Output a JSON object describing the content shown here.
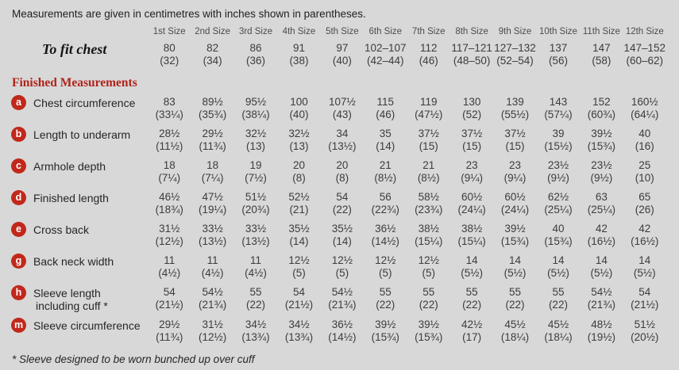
{
  "note": "Measurements are given in centimetres with inches shown in parentheses.",
  "footnote": "* Sleeve designed to be worn bunched up over cuff",
  "colors": {
    "background": "#d8d8d8",
    "badge_red": "#c1281b",
    "heading_red": "#b0241a",
    "text": "#2b2b2b"
  },
  "table": {
    "size_headers": [
      "1st Size",
      "2nd Size",
      "3rd Size",
      "4th Size",
      "5th Size",
      "6th Size",
      "7th Size",
      "8th Size",
      "9th Size",
      "10th Size",
      "11th Size",
      "12th Size"
    ],
    "to_fit_chest": {
      "label": "To fit chest",
      "cm": [
        "80",
        "82",
        "86",
        "91",
        "97",
        "102–107",
        "112",
        "117–121",
        "127–132",
        "137",
        "147",
        "147–152"
      ],
      "in": [
        "(32)",
        "(34)",
        "(36)",
        "(38)",
        "(40)",
        "(42–44)",
        "(46)",
        "(48–50)",
        "(52–54)",
        "(56)",
        "(58)",
        "(60–62)"
      ]
    },
    "section_heading": "Finished Measurements",
    "rows": [
      {
        "badge": "a",
        "label": "Chest circumference",
        "cm": [
          "83",
          "89½",
          "95½",
          "100",
          "107½",
          "115",
          "119",
          "130",
          "139",
          "143",
          "152",
          "160½"
        ],
        "in": [
          "(33¼)",
          "(35¾)",
          "(38¼)",
          "(40)",
          "(43)",
          "(46)",
          "(47½)",
          "(52)",
          "(55½)",
          "(57¼)",
          "(60¾)",
          "(64¼)"
        ]
      },
      {
        "badge": "b",
        "label": "Length to underarm",
        "cm": [
          "28½",
          "29½",
          "32½",
          "32½",
          "34",
          "35",
          "37½",
          "37½",
          "37½",
          "39",
          "39½",
          "40"
        ],
        "in": [
          "(11½)",
          "(11¾)",
          "(13)",
          "(13)",
          "(13½)",
          "(14)",
          "(15)",
          "(15)",
          "(15)",
          "(15½)",
          "(15¾)",
          "(16)"
        ]
      },
      {
        "badge": "c",
        "label": "Armhole depth",
        "cm": [
          "18",
          "18",
          "19",
          "20",
          "20",
          "21",
          "21",
          "23",
          "23",
          "23½",
          "23½",
          "25"
        ],
        "in": [
          "(7¼)",
          "(7¼)",
          "(7½)",
          "(8)",
          "(8)",
          "(8½)",
          "(8½)",
          "(9¼)",
          "(9¼)",
          "(9½)",
          "(9½)",
          "(10)"
        ]
      },
      {
        "badge": "d",
        "label": "Finished length",
        "cm": [
          "46½",
          "47½",
          "51½",
          "52½",
          "54",
          "56",
          "58½",
          "60½",
          "60½",
          "62½",
          "63",
          "65"
        ],
        "in": [
          "(18¾)",
          "(19¼)",
          "(20¾)",
          "(21)",
          "(22)",
          "(22¾)",
          "(23¾)",
          "(24¼)",
          "(24¼)",
          "(25¼)",
          "(25¼)",
          "(26)"
        ]
      },
      {
        "badge": "e",
        "label": "Cross back",
        "cm": [
          "31½",
          "33½",
          "33½",
          "35½",
          "35½",
          "36½",
          "38½",
          "38½",
          "39½",
          "40",
          "42",
          "42"
        ],
        "in": [
          "(12½)",
          "(13½)",
          "(13½)",
          "(14)",
          "(14)",
          "(14½)",
          "(15¼)",
          "(15¼)",
          "(15¾)",
          "(15¾)",
          "(16½)",
          "(16½)"
        ]
      },
      {
        "badge": "g",
        "label": "Back neck width",
        "cm": [
          "11",
          "11",
          "11",
          "12½",
          "12½",
          "12½",
          "12½",
          "14",
          "14",
          "14",
          "14",
          "14"
        ],
        "in": [
          "(4½)",
          "(4½)",
          "(4½)",
          "(5)",
          "(5)",
          "(5)",
          "(5)",
          "(5½)",
          "(5½)",
          "(5½)",
          "(5½)",
          "(5½)"
        ]
      },
      {
        "badge": "h",
        "label": "Sleeve length",
        "label2": "including cuff *",
        "cm": [
          "54",
          "54½",
          "55",
          "54",
          "54½",
          "55",
          "55",
          "55",
          "55",
          "55",
          "54½",
          "54"
        ],
        "in": [
          "(21½)",
          "(21¾)",
          "(22)",
          "(21½)",
          "(21¾)",
          "(22)",
          "(22)",
          "(22)",
          "(22)",
          "(22)",
          "(21¾)",
          "(21½)"
        ]
      },
      {
        "badge": "m",
        "label": "Sleeve circumference",
        "cm": [
          "29½",
          "31½",
          "34½",
          "34½",
          "36½",
          "39½",
          "39½",
          "42½",
          "45½",
          "45½",
          "48½",
          "51½"
        ],
        "in": [
          "(11¾)",
          "(12½)",
          "(13¾)",
          "(13¾)",
          "(14½)",
          "(15¾)",
          "(15¾)",
          "(17)",
          "(18¼)",
          "(18¼)",
          "(19½)",
          "(20½)"
        ]
      }
    ]
  }
}
